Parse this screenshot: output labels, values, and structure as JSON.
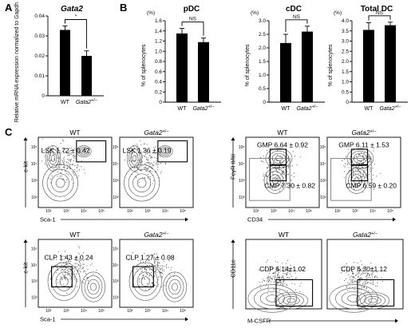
{
  "panel_letters": [
    "A",
    "B",
    "C"
  ],
  "chart_data": [
    {
      "type": "bar",
      "title": "Gata2",
      "ylabel": "Relative mRNA expression normalized to Gapdh",
      "categories": [
        "WT",
        "Gata2+/−"
      ],
      "cat_main": [
        "WT",
        "Gata2"
      ],
      "cat_sup": [
        "",
        "+/−"
      ],
      "values": [
        0.033,
        0.02
      ],
      "errors": [
        0.002,
        0.0025
      ],
      "ylim": [
        0,
        0.04
      ],
      "yticks": [
        "0",
        "0.01",
        "0.02",
        "0.03",
        "0.04"
      ],
      "significance": "*"
    },
    {
      "type": "bar",
      "title": "pDC",
      "ylabel": "% of splenocytes",
      "unit": "(%)",
      "categories": [
        "WT",
        "Gata2+/−"
      ],
      "cat_main": [
        "WT",
        "Gata2"
      ],
      "cat_sup": [
        "",
        "+/−"
      ],
      "values": [
        1.35,
        1.18
      ],
      "errors": [
        0.1,
        0.08
      ],
      "ylim": [
        0,
        1.6
      ],
      "yticks": [
        "0",
        "0.2",
        "0.4",
        "0.6",
        "0.8",
        "1.0",
        "1.2",
        "1.4",
        "1.6"
      ],
      "significance": "NS"
    },
    {
      "type": "bar",
      "title": "cDC",
      "ylabel": "% of splenocytes",
      "unit": "(%)",
      "categories": [
        "WT",
        "Gata2+/−"
      ],
      "cat_main": [
        "WT",
        "Gata2"
      ],
      "cat_sup": [
        "",
        "+/−"
      ],
      "values": [
        2.18,
        2.6
      ],
      "errors": [
        0.32,
        0.2
      ],
      "ylim": [
        0,
        3.0
      ],
      "yticks": [
        "0",
        "0.5",
        "1.0",
        "1.5",
        "2.0",
        "2.5",
        "3.0"
      ],
      "significance": "NS"
    },
    {
      "type": "bar",
      "title": "Total DC",
      "ylabel": "% of splenocytes",
      "unit": "(%)",
      "categories": [
        "WT",
        "Gata2+/−"
      ],
      "cat_main": [
        "WT",
        "Gata2"
      ],
      "cat_sup": [
        "",
        "+/−"
      ],
      "values": [
        3.55,
        3.78
      ],
      "errors": [
        0.35,
        0.15
      ],
      "ylim": [
        0,
        4.0
      ],
      "yticks": [
        "0",
        "0.5",
        "1.0",
        "1.5",
        "2.0",
        "2.5",
        "3.0",
        "3.5",
        "4.0"
      ],
      "significance": "NS"
    }
  ],
  "flow_plots": [
    {
      "header": "WT",
      "header_main": "WT",
      "header_sup": "",
      "gate_label": "LSK 1.72 ± 0.42",
      "xaxis": "Sca-1",
      "yaxis": "c-kit",
      "ticks": [
        "10²",
        "10³",
        "10⁴",
        "10⁵"
      ]
    },
    {
      "header": "Gata2+/−",
      "header_main": "Gata2",
      "header_sup": "+/−",
      "gate_label": "LSK 1.36 ± 0.19",
      "xaxis": "",
      "yaxis": "",
      "ticks": [
        "10²",
        "10³",
        "10⁴",
        "10⁵"
      ]
    },
    {
      "header": "WT",
      "header_main": "WT",
      "header_sup": "",
      "gate_label": "GMP 6.64 ± 0.92",
      "gate_label2": "CMP 7.30 ± 0.82",
      "xaxis": "CD34",
      "yaxis": "FcγR II/III",
      "ticks": [
        "10²",
        "10³",
        "10⁴",
        "10⁵"
      ]
    },
    {
      "header": "Gata2+/−",
      "header_main": "Gata2",
      "header_sup": "+/−",
      "gate_label": "GMP 6.11 ± 1.53",
      "gate_label2": "CMP 6.59 ± 0.20",
      "xaxis": "",
      "yaxis": "",
      "ticks": [
        "10²",
        "10³",
        "10⁴",
        "10⁵"
      ]
    },
    {
      "header": "WT",
      "header_main": "WT",
      "header_sup": "",
      "gate_label": "CLP 1.43 ± 0.24",
      "xaxis": "Sca-1",
      "yaxis": "c-kit",
      "ticks": [
        "10²",
        "10³",
        "10⁴",
        "10⁵"
      ]
    },
    {
      "header": "Gata2+/−",
      "header_main": "Gata2",
      "header_sup": "+/−",
      "gate_label": "CLP 1.27 ± 0.08",
      "xaxis": "",
      "yaxis": "",
      "ticks": [
        "10²",
        "10³",
        "10⁴",
        "10⁵"
      ]
    },
    {
      "header": "WT",
      "header_main": "WT",
      "header_sup": "",
      "gate_label": "CDP 6.14±1.02",
      "xaxis": "M-CSFR",
      "yaxis": "CD11c",
      "ticks": []
    },
    {
      "header": "Gata2+/−",
      "header_main": "Gata2",
      "header_sup": "+/−",
      "gate_label": "CDP 6.30±1.12",
      "xaxis": "",
      "yaxis": "",
      "ticks": []
    }
  ],
  "colors": {
    "bar": "#000000",
    "contour": "#555555",
    "dots": "#444444"
  }
}
